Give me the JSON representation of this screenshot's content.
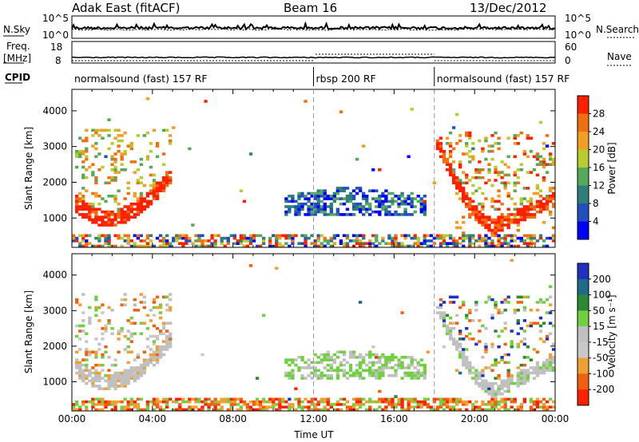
{
  "header": {
    "radar": "Adak East (fitACF)",
    "beam": "Beam 16",
    "date": "13/Dec/2012"
  },
  "noise_panel": {
    "left_label": "N.Sky",
    "right_label": "N.Search",
    "ticks_left": [
      "10^5",
      "10^0"
    ],
    "ticks_right": [
      "10^5",
      "10^0"
    ]
  },
  "freq_panel": {
    "left_label_1": "Freq.",
    "left_label_2": "[MHz]",
    "right_label": "Nave",
    "ticks_left": [
      "18",
      "8"
    ],
    "ticks_right": [
      "60",
      "0"
    ]
  },
  "cpid": {
    "label": "CPID",
    "segments": [
      {
        "text": "normalsound (fast) 157 RF",
        "start_h": 0,
        "end_h": 12
      },
      {
        "text": "rbsp 200 RF",
        "start_h": 12,
        "end_h": 18
      },
      {
        "text": "normalsound (fast) 157 RF",
        "start_h": 18,
        "end_h": 24
      }
    ]
  },
  "colors": {
    "power_scale": [
      "#0000ff",
      "#2050c0",
      "#2e7f7a",
      "#56a85a",
      "#b8cc30",
      "#f0a020",
      "#f07010",
      "#ff2000"
    ],
    "velocity_scale": [
      "#2030c0",
      "#1d6a8a",
      "#2a8a30",
      "#6fd040",
      "#c0c0c0",
      "#c8c8c8",
      "#f0a030",
      "#f06010",
      "#ff2000"
    ]
  },
  "chart_data": [
    {
      "type": "heatmap",
      "name": "power",
      "ylabel": "Slant Range [km]",
      "xlim": [
        0,
        24
      ],
      "ylim": [
        180,
        4600
      ],
      "yticks": [
        "1000",
        "2000",
        "3000",
        "4000"
      ],
      "colorbar_label": "Power [dB]",
      "colorbar_ticks": [
        "4",
        "8",
        "12",
        "16",
        "20",
        "24",
        "28"
      ],
      "colorbar_range": [
        0,
        30
      ]
    },
    {
      "type": "heatmap",
      "name": "velocity",
      "ylabel": "Slant Range [km]",
      "xlabel": "Time UT",
      "xlim": [
        0,
        24
      ],
      "ylim": [
        180,
        4600
      ],
      "xticks": [
        "00:00",
        "04:00",
        "08:00",
        "12:00",
        "16:00",
        "20:00",
        "00:00"
      ],
      "yticks": [
        "1000",
        "2000",
        "3000",
        "4000"
      ],
      "colorbar_label": "Velocity [m s⁻¹]",
      "colorbar_ticks": [
        "200",
        "100",
        "50",
        "15",
        "-15",
        "-50",
        "-100",
        "-200"
      ],
      "colorbar_range": [
        -250,
        250
      ]
    }
  ]
}
